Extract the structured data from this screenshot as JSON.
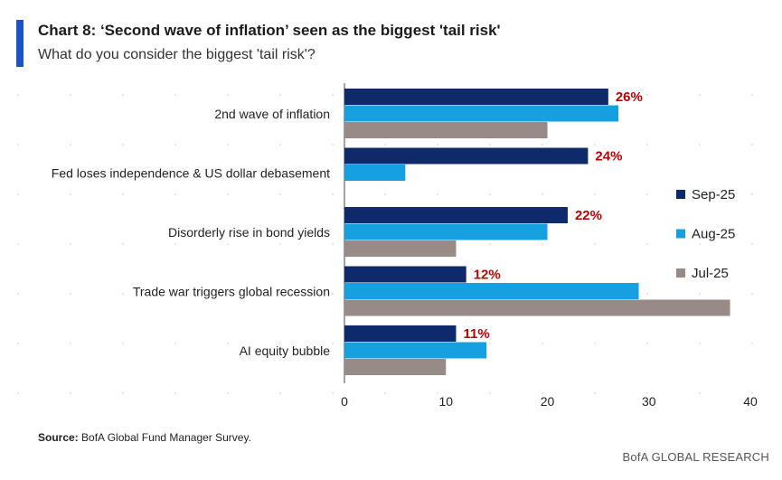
{
  "header": {
    "title": "Chart 8: ‘Second wave of inflation’ seen as the biggest 'tail risk'",
    "subtitle": "What do you consider the biggest 'tail risk'?"
  },
  "footer": {
    "source_label": "Source:",
    "source_text": "BofA Global Fund Manager Survey.",
    "brand": "BofA GLOBAL RESEARCH"
  },
  "colors": {
    "sep25": "#0f2a6b",
    "aug25": "#16a0e0",
    "jul25": "#978a87",
    "label_red": "#c00000",
    "accent": "#1f52c4"
  },
  "chart_data": {
    "type": "bar",
    "orientation": "horizontal",
    "categories": [
      "2nd wave of inflation",
      "Fed loses independence & US dollar debasement",
      "Disorderly rise in bond yields",
      "Trade war triggers global recession",
      "AI equity bubble"
    ],
    "series": [
      {
        "name": "Sep-25",
        "values": [
          26,
          24,
          22,
          12,
          11
        ]
      },
      {
        "name": "Aug-25",
        "values": [
          27,
          6,
          20,
          29,
          14
        ]
      },
      {
        "name": "Jul-25",
        "values": [
          20,
          0,
          11,
          38,
          10
        ]
      }
    ],
    "data_labels": [
      "26%",
      "24%",
      "22%",
      "12%",
      "11%"
    ],
    "xlim": [
      0,
      40
    ],
    "xticks": [
      0,
      10,
      20,
      30,
      40
    ],
    "legend_position": "right",
    "grid": false
  }
}
